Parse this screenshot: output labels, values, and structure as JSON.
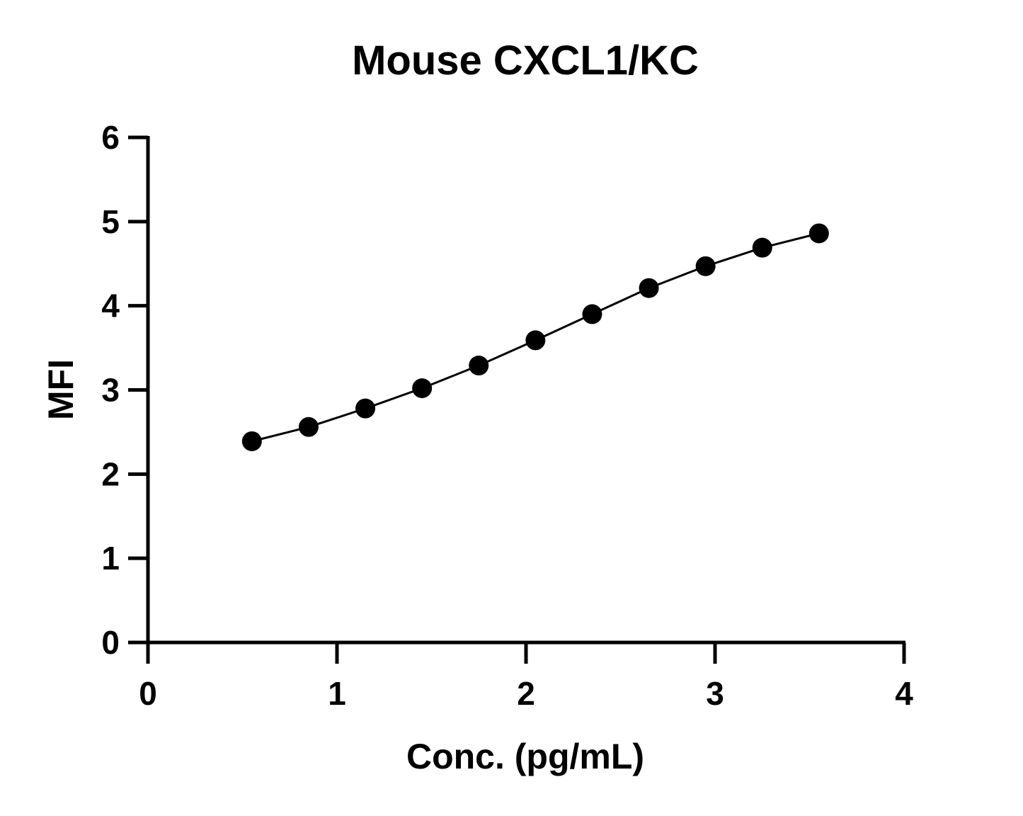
{
  "chart_data": {
    "type": "line",
    "title": "Mouse CXCL1/KC",
    "xlabel": "Conc. (pg/mL)",
    "ylabel": "MFI",
    "xlim": [
      0,
      4
    ],
    "ylim": [
      0,
      6
    ],
    "xticks": [
      0,
      1,
      2,
      3,
      4
    ],
    "yticks": [
      0,
      1,
      2,
      3,
      4,
      5,
      6
    ],
    "xtick_labels": [
      "0",
      "1",
      "2",
      "3",
      "4"
    ],
    "ytick_labels": [
      "0",
      "1",
      "2",
      "3",
      "4",
      "5",
      "6"
    ],
    "grid": false,
    "legend": "none",
    "markers": true,
    "series": [
      {
        "x": [
          0.55,
          0.85,
          1.15,
          1.45,
          1.75,
          2.05,
          2.35,
          2.65,
          2.95,
          3.25,
          3.55
        ],
        "y": [
          2.39,
          2.56,
          2.78,
          3.02,
          3.29,
          3.59,
          3.9,
          4.21,
          4.47,
          4.69,
          4.86
        ]
      }
    ],
    "colors": {
      "line": "#000000",
      "marker": "#000000",
      "axis": "#000000"
    }
  }
}
